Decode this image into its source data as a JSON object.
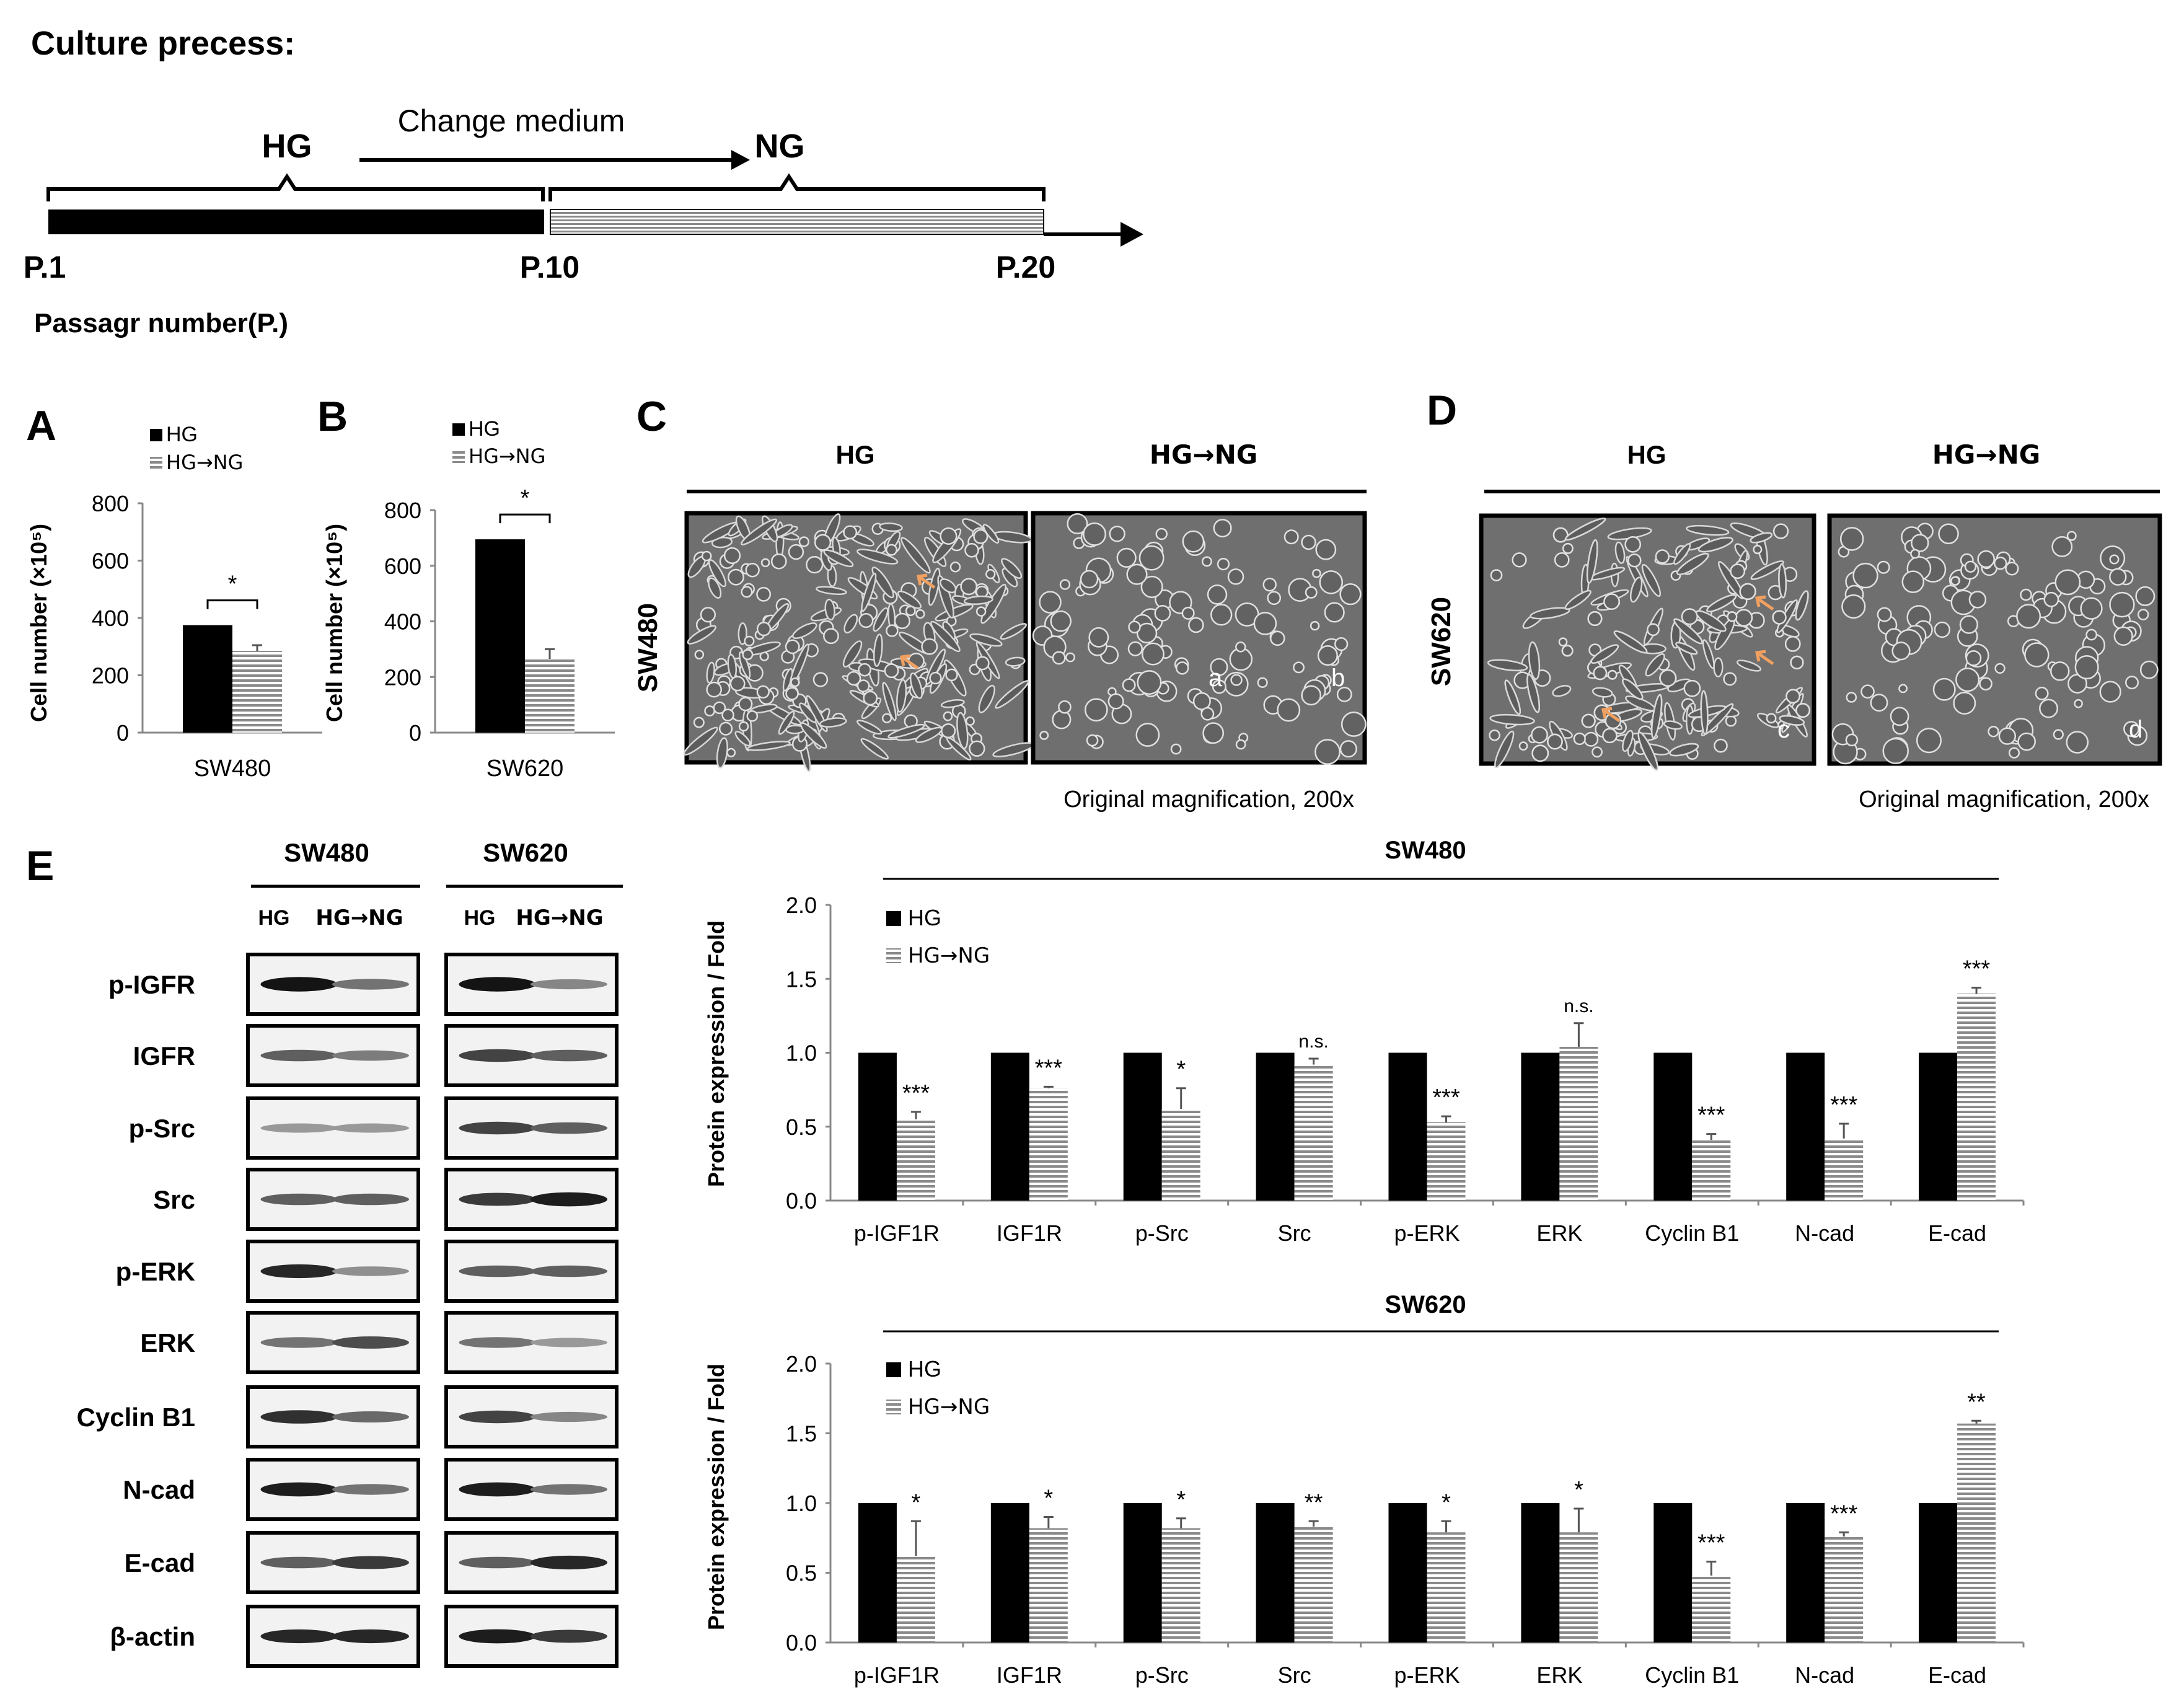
{
  "culture": {
    "title": "Culture precess:",
    "hg_label": "HG",
    "ng_label": "NG",
    "change_label": "Change medium",
    "p1": "P.1",
    "p10": "P.10",
    "p20": "P.20",
    "passage_label": "Passagr number(P.)"
  },
  "panels": {
    "a": "A",
    "b": "B",
    "c": "C",
    "d": "D",
    "e": "E"
  },
  "colors": {
    "hg": "#000000",
    "hgng_stripe": "#8a8a8a",
    "arrow": "#f0a060",
    "micro_bg": "#6f6f6f"
  },
  "chart_a": {
    "type": "bar",
    "legend": [
      "HG",
      "HG→NG"
    ],
    "ylabel": "Cell number (×10⁵)",
    "yticks": [
      "0",
      "200",
      "400",
      "600",
      "800"
    ],
    "ylim": [
      0,
      800
    ],
    "values": [
      375,
      285
    ],
    "errors": [
      0,
      20
    ],
    "sig": "*",
    "xlabel": "SW480"
  },
  "chart_b": {
    "type": "bar",
    "legend": [
      "HG",
      "HG→NG"
    ],
    "ylabel": "Cell number (×10⁵)",
    "yticks": [
      "0",
      "200",
      "400",
      "600",
      "800"
    ],
    "ylim": [
      0,
      800
    ],
    "values": [
      695,
      265
    ],
    "errors": [
      0,
      35
    ],
    "sig": "*",
    "xlabel": "SW620"
  },
  "panel_c": {
    "hg": "HG",
    "hgng": "HG→NG",
    "row": "SW480",
    "a": "a",
    "b": "b",
    "mag": "Original magnification, 200x"
  },
  "panel_d": {
    "hg": "HG",
    "hgng": "HG→NG",
    "row": "SW620",
    "c": "c",
    "d": "d",
    "mag": "Original magnification, 200x"
  },
  "panel_e": {
    "sw480": "SW480",
    "sw620": "SW620",
    "hg": "HG",
    "hgng": "HG→NG",
    "proteins": [
      "p-IGFR",
      "IGFR",
      "p-Src",
      "Src",
      "p-ERK",
      "ERK",
      "Cyclin B1",
      "N-cad",
      "E-cad",
      "β-actin"
    ]
  },
  "chart_data": [
    {
      "type": "bar",
      "title": "SW480",
      "ylabel": "Protein expression / Fold",
      "ylim": [
        0,
        2.0
      ],
      "yticks": [
        "0.0",
        "0.5",
        "1.0",
        "1.5",
        "2.0"
      ],
      "categories": [
        "p-IGF1R",
        "IGF1R",
        "p-Src",
        "Src",
        "p-ERK",
        "ERK",
        "Cyclin B1",
        "N-cad",
        "E-cad"
      ],
      "series": [
        {
          "name": "HG",
          "values": [
            1,
            1,
            1,
            1,
            1,
            1,
            1,
            1,
            1
          ]
        },
        {
          "name": "HG→NG",
          "values": [
            0.55,
            0.76,
            0.62,
            0.92,
            0.53,
            1.04,
            0.41,
            0.42,
            1.4
          ],
          "errors": [
            0.05,
            0.01,
            0.14,
            0.04,
            0.04,
            0.16,
            0.04,
            0.1,
            0.04
          ]
        }
      ],
      "sig": [
        "***",
        "***",
        "*",
        "n.s.",
        "***",
        "n.s.",
        "***",
        "***",
        "***"
      ]
    },
    {
      "type": "bar",
      "title": "SW620",
      "ylabel": "Protein expression / Fold",
      "ylim": [
        0,
        2.0
      ],
      "yticks": [
        "0.0",
        "0.5",
        "1.0",
        "1.5",
        "2.0"
      ],
      "categories": [
        "p-IGF1R",
        "IGF1R",
        "p-Src",
        "Src",
        "p-ERK",
        "ERK",
        "Cyclin B1",
        "N-cad",
        "E-cad"
      ],
      "series": [
        {
          "name": "HG",
          "values": [
            1,
            1,
            1,
            1,
            1,
            1,
            1,
            1,
            1
          ]
        },
        {
          "name": "HG→NG",
          "values": [
            0.62,
            0.82,
            0.82,
            0.83,
            0.79,
            0.79,
            0.48,
            0.76,
            1.57
          ],
          "errors": [
            0.25,
            0.08,
            0.07,
            0.04,
            0.08,
            0.17,
            0.1,
            0.03,
            0.02
          ]
        }
      ],
      "sig": [
        "*",
        "*",
        "*",
        "**",
        "*",
        "*",
        "***",
        "***",
        "**"
      ]
    }
  ]
}
